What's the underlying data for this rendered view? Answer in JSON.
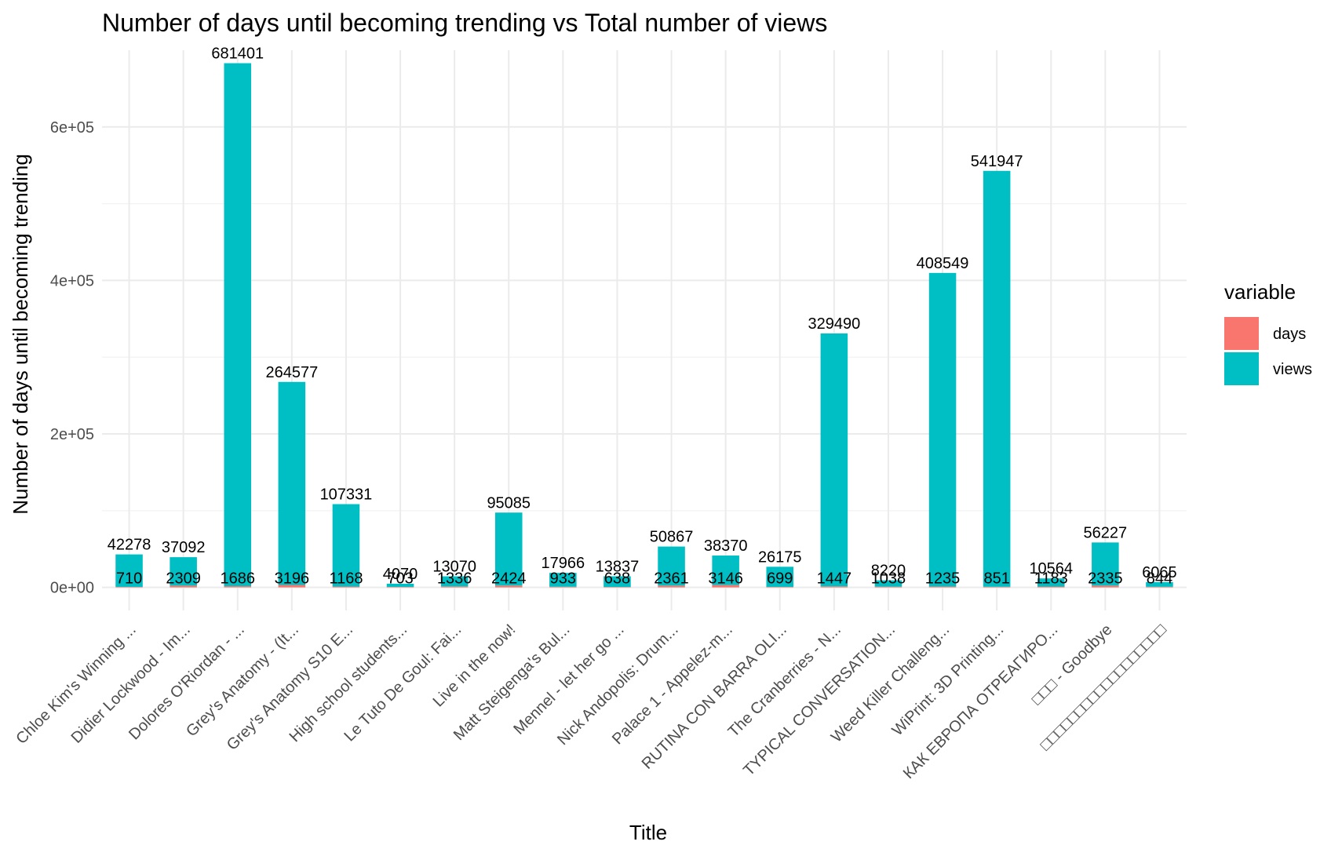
{
  "chart_data": {
    "type": "bar",
    "stacked": true,
    "title": "Number of days until becoming trending vs Total number of views",
    "xlabel": "Title",
    "ylabel": "Number of days until becoming trending",
    "ylim": [
      -30000,
      700000
    ],
    "yticks": [
      0,
      200000,
      400000,
      600000
    ],
    "ytick_labels": [
      "0e+00",
      "2e+05",
      "4e+05",
      "6e+05"
    ],
    "grid": true,
    "legend": {
      "title": "variable",
      "position": "right"
    },
    "categories": [
      "Chloe Kim's Winning ...",
      "Didier Lockwood - Im...",
      "Dolores O'Riordan - ...",
      "Grey's Anatomy - (It...",
      "Grey's Anatomy S10 E...",
      "High school students...",
      "Le Tuto De Goul: Fai...",
      "Live in the now!",
      "Matt Steigenga's Bul...",
      "Mennel - let her go ...",
      "Nick Andopolis: Drum...",
      "Palace 1 - Appelez-m...",
      "RUTINA CON BARRA OLI...",
      "The Cranberries -  N...",
      "TYPICAL CONVERSATION...",
      "Weed Killer Challeng...",
      "WiPrint: 3D Printing...",
      "КАК ЕВРОПА ОТРЕАГИРО...",
      "□□□ - Goodbye",
      "□□□□□□□□□□□□□□□□□□"
    ],
    "series": [
      {
        "name": "days",
        "color": "#F8766D",
        "values": [
          710,
          2309,
          1686,
          3196,
          1168,
          703,
          1336,
          2424,
          933,
          638,
          2361,
          3146,
          699,
          1447,
          1038,
          1235,
          851,
          1183,
          2335,
          844
        ]
      },
      {
        "name": "views",
        "color": "#00BFC4",
        "values": [
          42278,
          37092,
          681401,
          264577,
          107331,
          4070,
          13070,
          95085,
          17966,
          13837,
          50867,
          38370,
          26175,
          329490,
          8220,
          408549,
          541947,
          10564,
          56227,
          6065
        ]
      }
    ]
  }
}
